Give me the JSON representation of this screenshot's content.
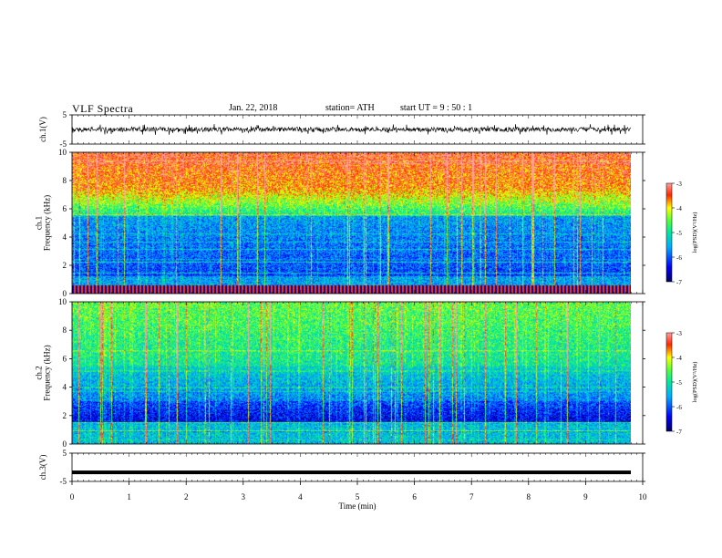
{
  "header": {
    "title": "VLF  Spectra",
    "date": "Jan. 22, 2018",
    "station": "station= ATH",
    "start": "start  UT  =    9  : 50 : 1"
  },
  "chart_data": [
    {
      "type": "line",
      "name": "waveform",
      "ylabel": "ch.1(V)",
      "ylim": [
        -5,
        5
      ],
      "yticks": [
        "5",
        "-5"
      ],
      "description_values": "noisy waveform fluctuating around 0 V, amplitude about ±1 V"
    },
    {
      "type": "heatmap",
      "ylabel": "ch.1\nFrequency  (kHz)",
      "ylim": [
        0,
        10
      ],
      "yticks": [
        "0",
        "2",
        "4",
        "6",
        "8",
        "10"
      ],
      "colorbar": {
        "label": "log(PSD)(V²/Hz)",
        "range": [
          -7,
          -3
        ],
        "ticks": [
          "-3",
          "-4",
          "-5",
          "-6",
          "-7"
        ]
      }
    },
    {
      "type": "heatmap",
      "ylabel": "ch.2\nFrequency  (kHz)",
      "ylim": [
        0,
        10
      ],
      "yticks": [
        "0",
        "2",
        "4",
        "6",
        "8",
        "10"
      ],
      "colorbar": {
        "label": "log(PSD)(V²/Hz)",
        "range": [
          -7,
          -3
        ],
        "ticks": [
          "-3",
          "-4",
          "-5",
          "-6",
          "-7"
        ]
      }
    },
    {
      "type": "line",
      "ylabel": "ch.3(V)",
      "ylim": [
        -5,
        5
      ],
      "yticks": [
        "5",
        "-5"
      ],
      "series": [
        {
          "values_constant": -1.8
        }
      ]
    }
  ],
  "xaxis": {
    "label": "Time  (min)",
    "xlim": [
      0,
      10
    ],
    "ticks": [
      "0",
      "1",
      "2",
      "3",
      "4",
      "5",
      "6",
      "7",
      "8",
      "9",
      "10"
    ]
  },
  "colors": {
    "scale": [
      "#000080",
      "#0000ff",
      "#00b0ff",
      "#00ff80",
      "#ffff00",
      "#ff2000",
      "#ff9090"
    ]
  }
}
